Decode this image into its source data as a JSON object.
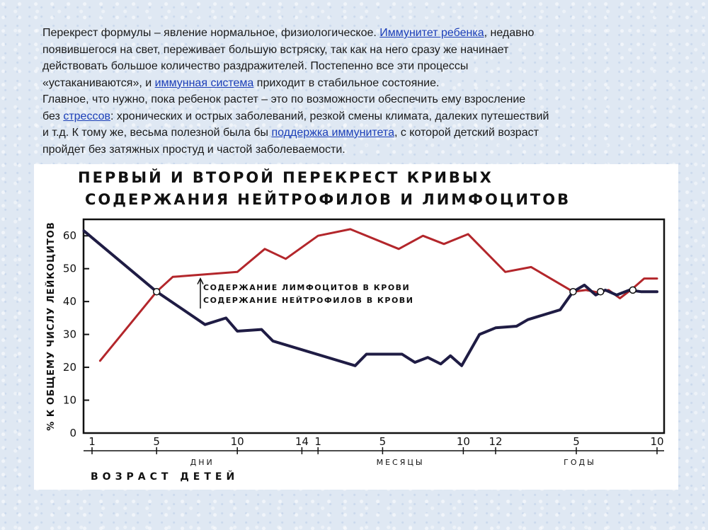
{
  "text": {
    "l1_a": "Перекрест формулы – явление нормальное, физиологическое. ",
    "l1_link": "Иммунитет ребенка",
    "l1_b": ", недавно",
    "l2": "появившегося на свет, переживает большую встряску, так как на него сразу же начинает",
    "l3": "действовать большое количество раздражителей. Постепенно все эти процессы",
    "l4_a": "«устаканиваются», и ",
    "l4_link": "иммунная система",
    "l4_b": " приходит в стабильное состояние.",
    "l5": "Главное, что нужно, пока ребенок растет – это по возможности обеспечить ему взросление",
    "l6_a": "без ",
    "l6_link": "стрессов",
    "l6_b": ": хронических и острых заболеваний, резкой смены климата, далеких путешествий",
    "l7_a": "и т.д. К тому же, весьма полезной была бы ",
    "l7_link": "поддержка иммунитета",
    "l7_b": ", с которой детский возраст",
    "l8": "пройдет без затяжных простуд и частой заболеваемости."
  },
  "chart_data": {
    "type": "line",
    "title": [
      "ПЕРВЫЙ И ВТОРОЙ ПЕРЕКРЕСТ КРИВЫХ",
      "СОДЕРЖАНИЯ НЕЙТРОФИЛОВ И ЛИМФОЦИТОВ"
    ],
    "ylabel": "% К ОБЩЕМУ ЧИСЛУ ЛЕЙКОЦИТОВ",
    "xlabel": "ВОЗРАСТ ДЕТЕЙ",
    "ylim": [
      0,
      65
    ],
    "yticks": [
      0,
      10,
      20,
      30,
      40,
      50,
      60
    ],
    "x_groups": [
      {
        "label": "ДНИ",
        "ticks": [
          "1",
          "5",
          "10",
          "14"
        ]
      },
      {
        "label": "МЕСЯЦЫ",
        "ticks": [
          "1",
          "5",
          "10",
          "12"
        ]
      },
      {
        "label": "ГОДЫ",
        "ticks": [
          "5",
          "10"
        ]
      }
    ],
    "x_ticks": [
      {
        "label": "1",
        "x": 0
      },
      {
        "label": "5",
        "x": 4
      },
      {
        "label": "10",
        "x": 9
      },
      {
        "label": "14",
        "x": 13
      },
      {
        "label": "1",
        "x": 14
      },
      {
        "label": "5",
        "x": 18
      },
      {
        "label": "10",
        "x": 23
      },
      {
        "label": "12",
        "x": 25
      },
      {
        "label": "5",
        "x": 30
      },
      {
        "label": "10",
        "x": 35
      }
    ],
    "x_range": [
      0,
      35
    ],
    "series": [
      {
        "name": "СОДЕРЖАНИЕ ЛИМФОЦИТОВ В КРОВИ",
        "color": "#b3262b",
        "points": [
          [
            0.5,
            22
          ],
          [
            4,
            43
          ],
          [
            5,
            47.5
          ],
          [
            9,
            49
          ],
          [
            10.7,
            56
          ],
          [
            12,
            53
          ],
          [
            14,
            60
          ],
          [
            16,
            62
          ],
          [
            19,
            56
          ],
          [
            20.5,
            60
          ],
          [
            21.8,
            57.5
          ],
          [
            23.3,
            60.5
          ],
          [
            25.6,
            49
          ],
          [
            27.2,
            50.5
          ],
          [
            29.8,
            43
          ],
          [
            30.6,
            43.5
          ],
          [
            31.3,
            42.8
          ],
          [
            32,
            43.5
          ],
          [
            32.7,
            41
          ],
          [
            33.5,
            44
          ],
          [
            34.2,
            47
          ],
          [
            35,
            47
          ]
        ]
      },
      {
        "name": "СОДЕРЖАНИЕ НЕЙТРОФИЛОВ В КРОВИ",
        "color": "#1f1c44",
        "points": [
          [
            -0.5,
            61.5
          ],
          [
            4,
            43
          ],
          [
            5.5,
            38
          ],
          [
            7,
            33
          ],
          [
            8.3,
            35
          ],
          [
            9,
            31
          ],
          [
            10.5,
            31.5
          ],
          [
            11.2,
            28
          ],
          [
            16.3,
            20.5
          ],
          [
            17,
            24
          ],
          [
            19.2,
            24
          ],
          [
            20,
            21.5
          ],
          [
            20.8,
            23
          ],
          [
            21.6,
            21
          ],
          [
            22.2,
            23.5
          ],
          [
            22.9,
            20.5
          ],
          [
            24,
            30
          ],
          [
            25,
            32
          ],
          [
            26.3,
            32.5
          ],
          [
            27,
            34.5
          ],
          [
            29,
            37.5
          ],
          [
            29.8,
            43
          ],
          [
            30.5,
            45
          ],
          [
            31.2,
            42
          ],
          [
            31.8,
            43.5
          ],
          [
            32.5,
            42
          ],
          [
            33.3,
            43.5
          ],
          [
            34,
            43
          ],
          [
            35,
            43
          ]
        ]
      }
    ],
    "crossovers": [
      [
        4,
        43
      ],
      [
        29.8,
        43
      ],
      [
        31.5,
        43
      ],
      [
        33.5,
        43.5
      ]
    ]
  }
}
